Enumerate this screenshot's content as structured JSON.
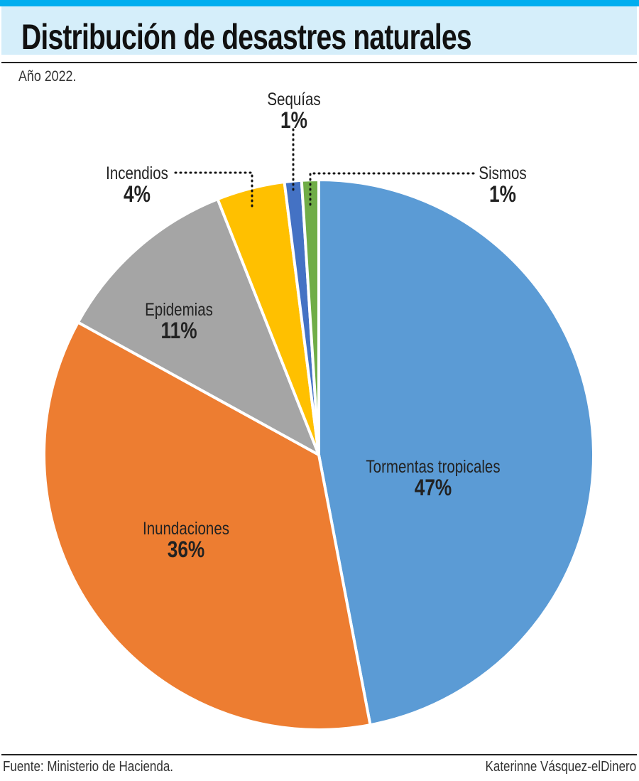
{
  "header": {
    "title": "Distribución de desastres naturales",
    "subtitle": "Año 2022."
  },
  "footer": {
    "source": "Fuente: Ministerio de Hacienda.",
    "credit": "Katerinne Vásquez-elDinero"
  },
  "chart_data": {
    "type": "pie",
    "title": "Distribución de desastres naturales",
    "subtitle": "Año 2022.",
    "unit": "%",
    "start": "12 o'clock, clockwise",
    "slices": [
      {
        "label": "Tormentas tropicales",
        "value": 47,
        "display": "47%",
        "color": "#5b9bd5"
      },
      {
        "label": "Inundaciones",
        "value": 36,
        "display": "36%",
        "color": "#ed7d31"
      },
      {
        "label": "Epidemias",
        "value": 11,
        "display": "11%",
        "color": "#a5a5a5"
      },
      {
        "label": "Incendios",
        "value": 4,
        "display": "4%",
        "color": "#ffc000"
      },
      {
        "label": "Sequías",
        "value": 1,
        "display": "1%",
        "color": "#4472c4"
      },
      {
        "label": "Sismos",
        "value": 1,
        "display": "1%",
        "color": "#70ad47"
      }
    ]
  }
}
